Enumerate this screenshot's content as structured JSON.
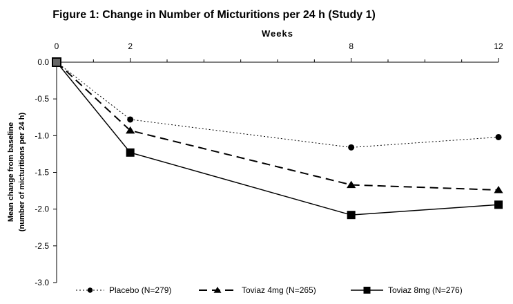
{
  "chart_data": {
    "type": "line",
    "title": "Figure 1: Change in Number of Micturitions per 24 h (Study 1)",
    "xlabel": "Weeks",
    "xlabel_position": "top",
    "ylabel": [
      "Mean change from baseline",
      "(number of micturitions per 24 h)"
    ],
    "x_ticks": [
      0,
      2,
      8,
      12
    ],
    "xlim": [
      0,
      12
    ],
    "y_ticks": [
      "0.0",
      "-0.5",
      "-1.0",
      "-1.5",
      "-2.0",
      "-2.5",
      "-3.0"
    ],
    "ylim": [
      -3.0,
      0.0
    ],
    "grid": false,
    "legend_position": "bottom",
    "series": [
      {
        "name": "Placebo (N=279)",
        "style": "dotted",
        "marker": "circle",
        "x": [
          0,
          2,
          8,
          12
        ],
        "y": [
          0.0,
          -0.78,
          -1.16,
          -1.02
        ]
      },
      {
        "name": "Toviaz 4mg (N=265)",
        "style": "dashed",
        "marker": "triangle",
        "x": [
          0,
          2,
          8,
          12
        ],
        "y": [
          0.0,
          -0.93,
          -1.67,
          -1.74
        ]
      },
      {
        "name": "Toviaz 8mg (N=276)",
        "style": "solid",
        "marker": "square",
        "x": [
          0,
          2,
          8,
          12
        ],
        "y": [
          0.0,
          -1.23,
          -2.08,
          -1.94
        ]
      }
    ]
  }
}
